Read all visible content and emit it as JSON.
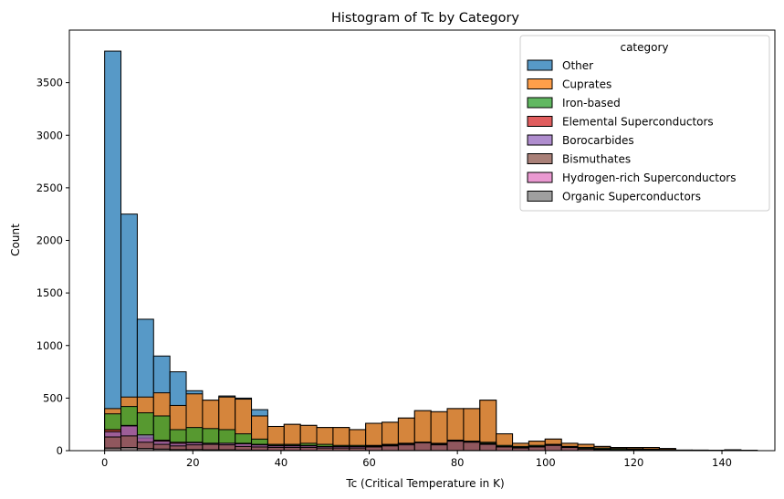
{
  "chart_data": {
    "type": "bar",
    "subtype": "stacked-histogram",
    "title": "Histogram of Tc by Category",
    "xlabel": "Tc (Critical Temperature in K)",
    "ylabel": "Count",
    "xlim": [
      -8,
      152
    ],
    "ylim": [
      0,
      4000
    ],
    "xticks": [
      0,
      20,
      40,
      60,
      80,
      100,
      120,
      140
    ],
    "yticks": [
      0,
      500,
      1000,
      1500,
      2000,
      2500,
      3000,
      3500
    ],
    "bin_width": 3.7,
    "bin_start": 0,
    "grid": false,
    "legend_title": "category",
    "legend_position": "top-right",
    "series": [
      {
        "name": "Other",
        "color": "#1f77b4",
        "totals": [
          3800,
          2250,
          1250,
          900,
          750,
          570,
          480,
          520,
          500,
          390,
          230,
          250,
          240,
          220,
          220,
          200,
          260,
          270,
          310,
          380,
          370,
          400,
          400,
          480,
          160,
          70,
          90,
          110,
          70,
          60,
          40,
          30,
          30,
          30,
          20,
          5,
          5,
          3,
          8,
          3
        ]
      },
      {
        "name": "Cuprates",
        "color": "#ff7f0e",
        "totals": [
          400,
          510,
          510,
          550,
          430,
          540,
          480,
          510,
          490,
          330,
          230,
          250,
          240,
          220,
          220,
          200,
          260,
          270,
          310,
          380,
          370,
          400,
          400,
          480,
          160,
          70,
          90,
          110,
          70,
          60,
          40,
          30,
          30,
          30,
          20,
          5,
          5,
          3,
          8,
          3
        ]
      },
      {
        "name": "Iron-based",
        "color": "#2ca02c",
        "totals": [
          350,
          420,
          360,
          330,
          200,
          220,
          210,
          200,
          160,
          110,
          60,
          60,
          70,
          60,
          50,
          50,
          50,
          60,
          70,
          80,
          70,
          100,
          90,
          80,
          50,
          40,
          50,
          60,
          40,
          30,
          25,
          20,
          18,
          15,
          10,
          5,
          3,
          2,
          2,
          1
        ]
      },
      {
        "name": "Elemental Superconductors",
        "color": "#d62728",
        "totals": [
          200,
          240,
          120,
          100,
          80,
          80,
          70,
          70,
          70,
          60,
          50,
          50,
          50,
          40,
          40,
          40,
          45,
          55,
          70,
          80,
          65,
          100,
          90,
          70,
          40,
          30,
          40,
          55,
          35,
          20,
          15,
          10,
          10,
          8,
          5,
          3,
          2,
          1,
          1,
          1
        ]
      },
      {
        "name": "Borocarbides",
        "color": "#9467bd",
        "totals": [
          180,
          235,
          150,
          90,
          70,
          75,
          70,
          70,
          65,
          55,
          45,
          45,
          45,
          38,
          38,
          38,
          42,
          52,
          65,
          75,
          62,
          95,
          85,
          65,
          38,
          28,
          38,
          52,
          32,
          18,
          12,
          8,
          8,
          6,
          4,
          2,
          1,
          1,
          1,
          0
        ]
      },
      {
        "name": "Bismuthates",
        "color": "#8c564b",
        "totals": [
          130,
          140,
          80,
          60,
          45,
          55,
          60,
          55,
          40,
          35,
          30,
          30,
          30,
          25,
          25,
          25,
          35,
          45,
          55,
          75,
          55,
          90,
          80,
          60,
          35,
          25,
          35,
          50,
          30,
          15,
          10,
          5,
          5,
          5,
          3,
          1,
          1,
          0,
          0,
          0
        ]
      },
      {
        "name": "Hydrogen-rich Superconductors",
        "color": "#e377c2",
        "totals": [
          0,
          0,
          0,
          0,
          0,
          0,
          0,
          0,
          0,
          0,
          0,
          0,
          0,
          0,
          0,
          0,
          0,
          0,
          0,
          0,
          0,
          0,
          0,
          0,
          0,
          0,
          0,
          0,
          0,
          0,
          0,
          0,
          0,
          0,
          0,
          0,
          0,
          0,
          0,
          0
        ]
      },
      {
        "name": "Organic Superconductors",
        "color": "#7f7f7f",
        "totals": [
          25,
          30,
          20,
          15,
          10,
          10,
          8,
          8,
          6,
          5,
          3,
          3,
          3,
          2,
          2,
          2,
          2,
          2,
          2,
          2,
          2,
          2,
          2,
          2,
          1,
          1,
          1,
          1,
          1,
          0,
          0,
          0,
          0,
          0,
          0,
          0,
          0,
          0,
          0,
          0
        ]
      }
    ]
  }
}
